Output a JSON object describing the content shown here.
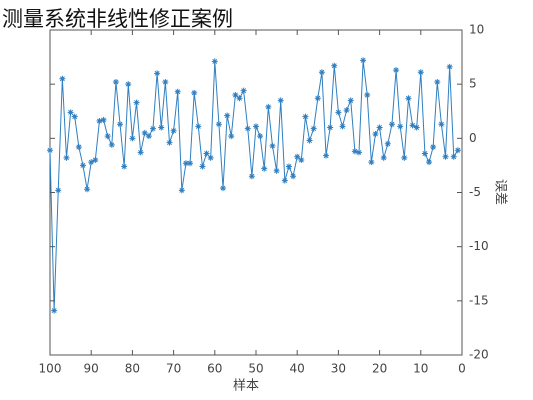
{
  "chart_data": {
    "type": "line",
    "title": "测量系统非线性修正案例",
    "x_label": "样本",
    "y_label": "误差",
    "x": [
      1,
      2,
      3,
      4,
      5,
      6,
      7,
      8,
      9,
      10,
      11,
      12,
      13,
      14,
      15,
      16,
      17,
      18,
      19,
      20,
      21,
      22,
      23,
      24,
      25,
      26,
      27,
      28,
      29,
      30,
      31,
      32,
      33,
      34,
      35,
      36,
      37,
      38,
      39,
      40,
      41,
      42,
      43,
      44,
      45,
      46,
      47,
      48,
      49,
      50,
      51,
      52,
      53,
      54,
      55,
      56,
      57,
      58,
      59,
      60,
      61,
      62,
      63,
      64,
      65,
      66,
      67,
      68,
      69,
      70,
      71,
      72,
      73,
      74,
      75,
      76,
      77,
      78,
      79,
      80,
      81,
      82,
      83,
      84,
      85,
      86,
      87,
      88,
      89,
      90,
      91,
      92,
      93,
      94,
      95,
      96,
      97,
      98,
      99,
      100
    ],
    "series": [
      {
        "color": "#2f7fc1",
        "values": [
          -1.1,
          -1.7,
          6.6,
          -1.7,
          1.3,
          5.2,
          -0.8,
          -2.2,
          -1.4,
          6.1,
          1,
          1.2,
          3.7,
          -1.8,
          1.1,
          6.3,
          1.3,
          -0.5,
          -1.8,
          1,
          0.4,
          -2.2,
          4,
          7.2,
          -1.3,
          -1.2,
          3.5,
          2.6,
          1.1,
          2.4,
          6.7,
          1,
          -1.6,
          6.1,
          3.7,
          0.9,
          -0.2,
          2,
          -2,
          -1.7,
          -3.5,
          -2.6,
          -3.9,
          3.5,
          -3,
          -0.7,
          2.9,
          -2.8,
          0.2,
          1.1,
          -3.5,
          0.9,
          4.4,
          3.7,
          4,
          0.2,
          2.1,
          -4.6,
          1.3,
          7.1,
          -1.8,
          -1.4,
          -2.6,
          1.1,
          4.2,
          -2.3,
          -2.3,
          -4.8,
          4.3,
          0.7,
          -0.4,
          5.2,
          1,
          6,
          0.9,
          0.2,
          0.5,
          -1.3,
          3.3,
          0,
          5,
          -2.6,
          1.3,
          5.2,
          -0.6,
          0.2,
          1.7,
          1.6,
          -2,
          -2.2,
          -4.7,
          -2.5,
          -0.8,
          2,
          2.4,
          -1.8,
          5.5,
          -4.8,
          -15.9,
          -1.1
        ]
      }
    ],
    "xlim": [
      100,
      0
    ],
    "xticks": [
      0,
      10,
      20,
      30,
      40,
      50,
      60,
      70,
      80,
      90,
      100
    ],
    "ylim": [
      -20,
      10
    ],
    "yticks": [
      10,
      5,
      0,
      -5,
      -10,
      -15,
      -20
    ]
  }
}
